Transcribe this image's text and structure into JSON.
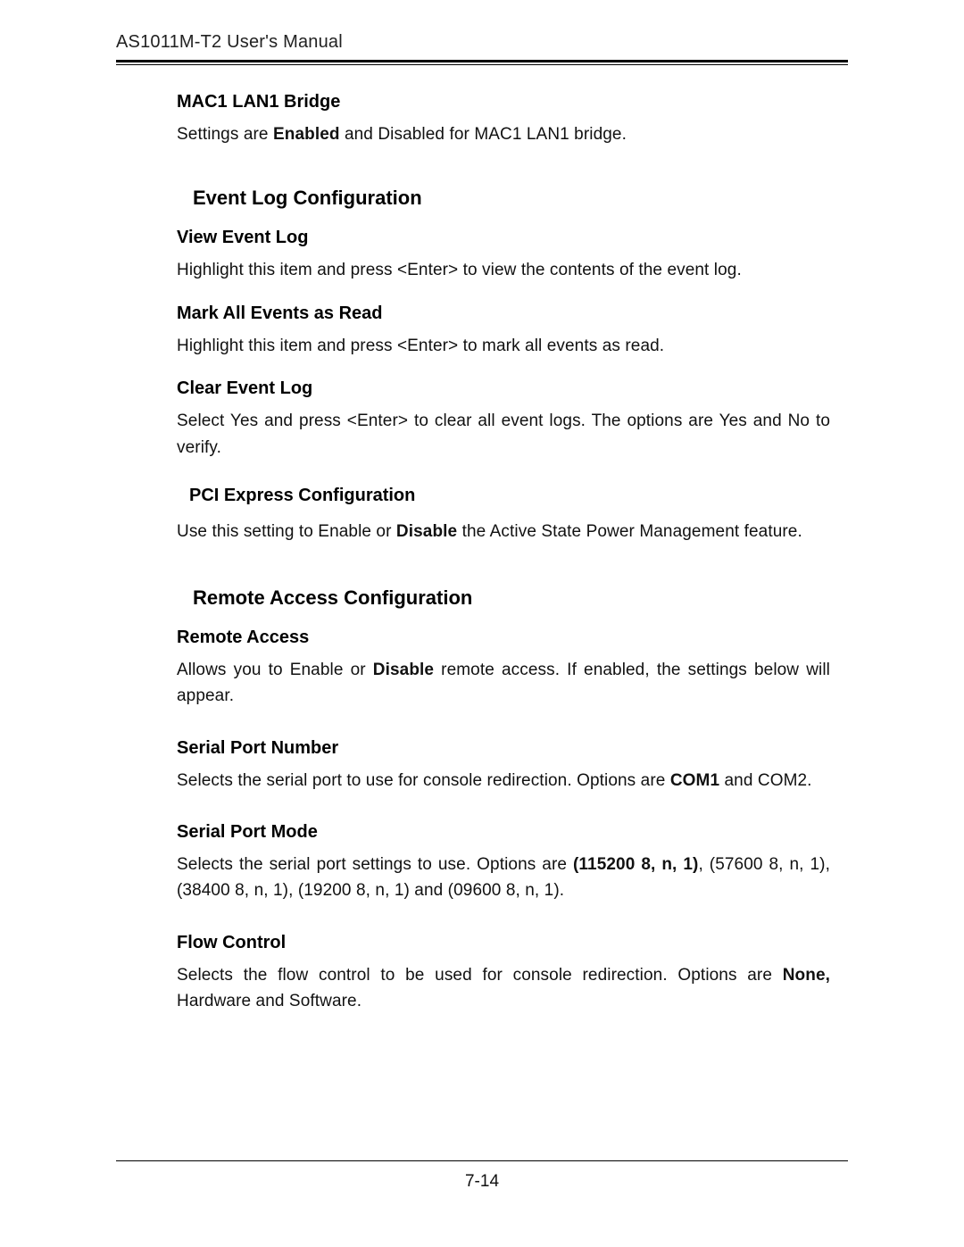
{
  "header": {
    "title": "AS1011M-T2 User's Manual"
  },
  "footer": {
    "page": "7-14"
  },
  "sections": {
    "mac1": {
      "heading": "MAC1 LAN1 Bridge",
      "text_pre": "Settings are ",
      "bold": "Enabled",
      "text_post": " and Disabled for MAC1 LAN1 bridge."
    },
    "eventlog": {
      "title": "Event Log Configuration",
      "view": {
        "heading": "View Event Log",
        "text": "Highlight this item and press <Enter> to view the contents of the event log."
      },
      "mark": {
        "heading": "Mark All Events as Read",
        "text": "Highlight this item and press <Enter> to mark all events as read."
      },
      "clear": {
        "heading": "Clear Event Log",
        "text": "Select Yes and press <Enter> to clear all event logs. The options are Yes and No to verify."
      },
      "pcie": {
        "heading": "PCI Express Configuration",
        "text_pre": "Use this setting to Enable or ",
        "bold": "Disable",
        "text_post": " the Active State Power Management feature."
      }
    },
    "remote": {
      "title": "Remote Access Configuration",
      "access": {
        "heading": "Remote Access",
        "text_pre": "Allows you to Enable or ",
        "bold": "Disable",
        "text_post": " remote access.  If enabled, the settings below will appear."
      },
      "serialnum": {
        "heading": "Serial Port Number",
        "text_pre": "Selects the serial port to use for console redirection.  Options are ",
        "bold": "COM1",
        "text_post": " and COM2."
      },
      "serialmode": {
        "heading": "Serial Port Mode",
        "text_pre": "Selects the serial port settings to use.  Options are ",
        "bold": "(115200 8, n, 1)",
        "text_post": ", (57600 8, n, 1), (38400 8, n, 1), (19200 8, n, 1) and (09600 8, n, 1)."
      },
      "flow": {
        "heading": "Flow Control",
        "text_pre": "Selects the flow control to be used for console redirection.  Options are ",
        "bold": "None,",
        "text_post": " Hardware and Software."
      }
    }
  }
}
